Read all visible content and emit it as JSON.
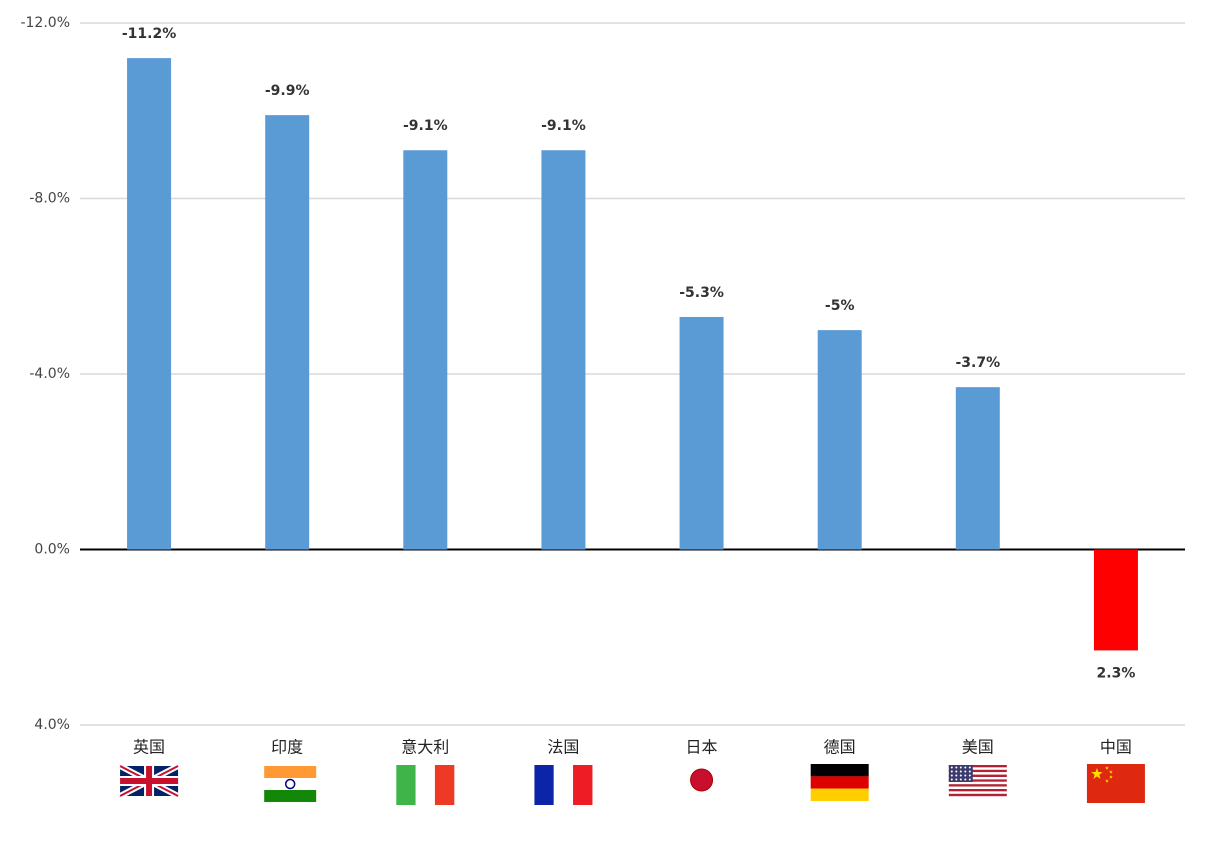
{
  "chart_data": {
    "type": "bar",
    "categories": [
      "英国",
      "印度",
      "意大利",
      "法国",
      "日本",
      "德国",
      "美国",
      "中国"
    ],
    "values": [
      -11.2,
      -9.9,
      -9.1,
      -9.1,
      -5.3,
      -5,
      -3.7,
      2.3
    ],
    "value_labels": [
      "-11.2%",
      "-9.9%",
      "-9.1%",
      "-9.1%",
      "-5.3%",
      "-5%",
      "-3.7%",
      "2.3%"
    ],
    "colors": [
      "#5b9bd5",
      "#5b9bd5",
      "#5b9bd5",
      "#5b9bd5",
      "#5b9bd5",
      "#5b9bd5",
      "#5b9bd5",
      "#ff0000"
    ],
    "ylim": [
      4,
      -12
    ],
    "yticks": [
      {
        "value": -12,
        "label": "-12.0%"
      },
      {
        "value": -8,
        "label": "-8.0%"
      },
      {
        "value": -4,
        "label": "-4.0%"
      },
      {
        "value": 0,
        "label": "0.0%"
      },
      {
        "value": 4,
        "label": "4.0%"
      }
    ],
    "grid": true
  }
}
